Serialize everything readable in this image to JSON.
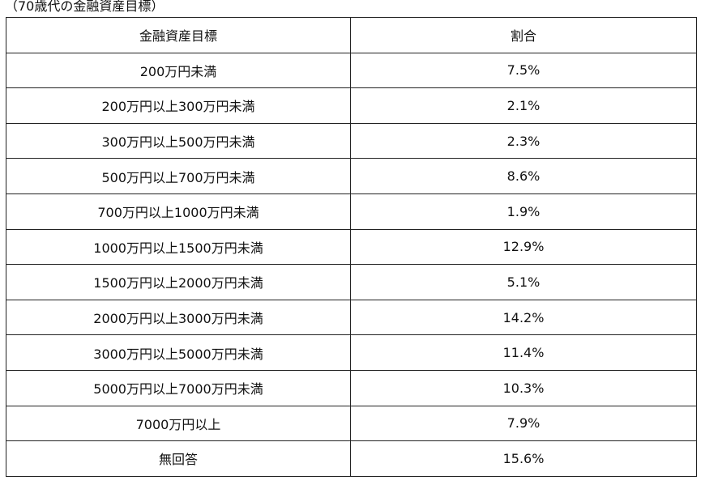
{
  "title": "（70歳代の金融資産目標）",
  "table": {
    "headers": [
      "金融資産目標",
      "割合"
    ],
    "rows": [
      [
        "200万円未満",
        "7.5%"
      ],
      [
        "200万円以上300万円未満",
        "2.1%"
      ],
      [
        "300万円以上500万円未満",
        "2.3%"
      ],
      [
        "500万円以上700万円未満",
        "8.6%"
      ],
      [
        "700万円以上1000万円未満",
        "1.9%"
      ],
      [
        "1000万円以上1500万円未満",
        "12.9%"
      ],
      [
        "1500万円以上2000万円未満",
        "5.1%"
      ],
      [
        "2000万円以上3000万円未満",
        "14.2%"
      ],
      [
        "3000万円以上5000万円未満",
        "11.4%"
      ],
      [
        "5000万円以上7000万円未満",
        "10.3%"
      ],
      [
        "7000万円以上",
        "7.9%"
      ],
      [
        "無回答",
        "15.6%"
      ]
    ]
  }
}
